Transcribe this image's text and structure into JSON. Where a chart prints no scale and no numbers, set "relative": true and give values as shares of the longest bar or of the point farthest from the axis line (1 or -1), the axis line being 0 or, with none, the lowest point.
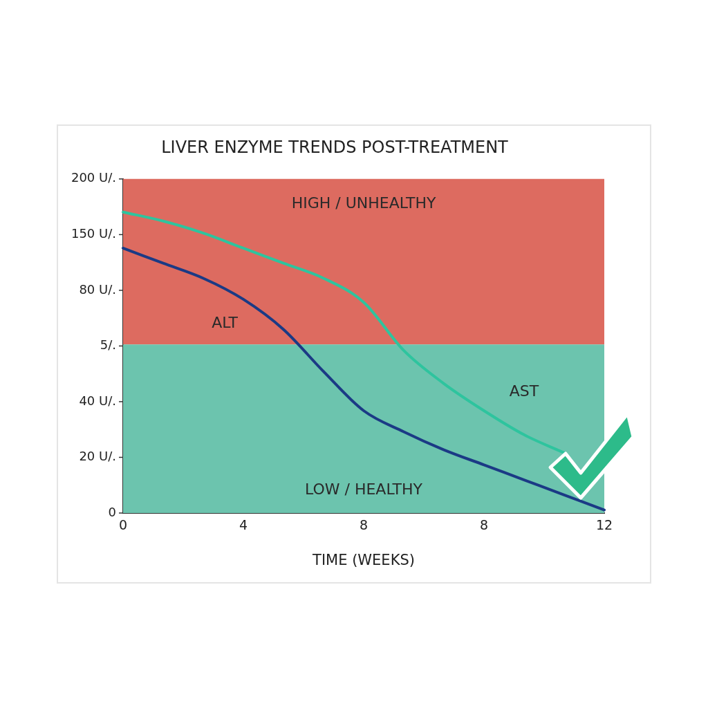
{
  "chart_data": {
    "type": "line",
    "title": "LIVER ENZYME TRENDS POST-TREATMENT",
    "xlabel": "TIME (WEEKS)",
    "categories": [
      "0",
      null,
      null,
      "4",
      null,
      null,
      "8",
      null,
      null,
      "8",
      null,
      null,
      "12"
    ],
    "relative": true,
    "annotations": [
      "0",
      "20 U/.",
      "40 U/.",
      "5/.",
      "80 U/.",
      "150 U/.",
      "200 U/."
    ],
    "grid": false,
    "legend": false,
    "marker": "none",
    "line_style": "solid",
    "bands": [
      {
        "axis": "y",
        "from": 0.56,
        "to": 1.11,
        "label": "HIGH / UNHEALTHY",
        "color": "#dd6b60"
      },
      {
        "axis": "y",
        "from": 0,
        "to": 0.56,
        "label": "LOW / HEALTHY",
        "color": "#6cc4ae"
      }
    ],
    "series": [
      {
        "name": "ALT",
        "color": "#1b3a85",
        "values": [
          0.88,
          0.83,
          0.78,
          0.71,
          0.61,
          0.47,
          0.34,
          0.27,
          0.21,
          0.16,
          0.11,
          0.06,
          0.01
        ]
      },
      {
        "name": "AST",
        "color": "#2ec49e",
        "values": [
          1,
          0.97,
          0.93,
          0.88,
          0.83,
          0.78,
          0.7,
          0.54,
          0.43,
          0.34,
          0.26,
          0.2,
          null
        ]
      }
    ]
  }
}
